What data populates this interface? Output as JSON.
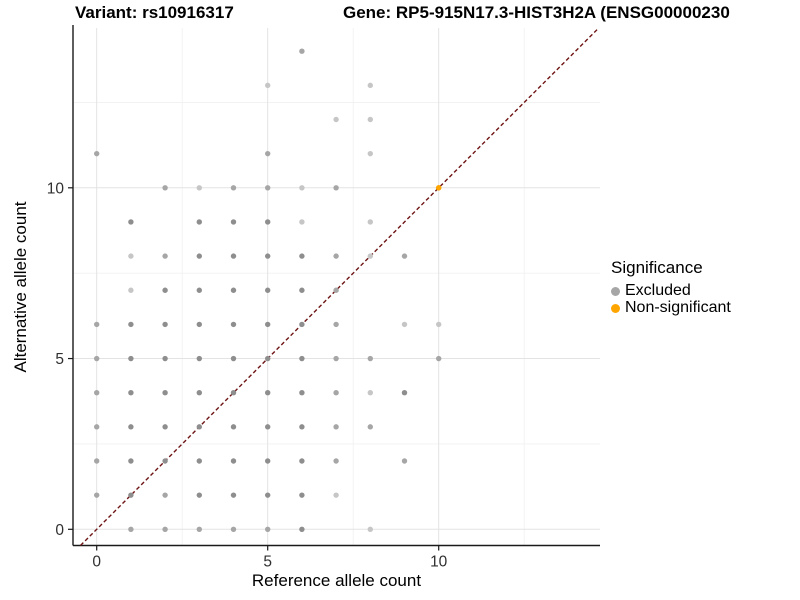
{
  "header": {
    "variant_label": "Variant: rs10916317",
    "gene_label": "Gene: RP5-915N17.3-HIST3H2A (ENSG00000230"
  },
  "chart_data": {
    "type": "scatter",
    "xlabel": "Reference allele count",
    "ylabel": "Alternative allele count",
    "x_ticks": [
      0,
      5,
      10
    ],
    "y_ticks": [
      0,
      5,
      10
    ],
    "x_minor_gridlines": [
      2.5,
      7.5,
      12.5
    ],
    "y_minor_gridlines": [
      2.5,
      7.5,
      12.5
    ],
    "xlim": [
      -0.7,
      14.7
    ],
    "ylim": [
      -0.47,
      14.68
    ],
    "grid": "major-and-minor",
    "identity_line": {
      "equation": "y = x",
      "style": "dashed",
      "color": "#6E1414"
    },
    "point_shade_colors": {
      "1": "#C6C6C6",
      "2": "#A6A6A6",
      "3": "#8E8E8E"
    },
    "series": [
      {
        "name": "Excluded",
        "color": "#A6A6A6",
        "points_xys": [
          [
            1,
            0,
            2
          ],
          [
            2,
            0,
            2
          ],
          [
            3,
            0,
            2
          ],
          [
            4,
            0,
            2
          ],
          [
            5,
            0,
            2
          ],
          [
            6,
            0,
            3
          ],
          [
            8,
            0,
            1
          ],
          [
            0,
            1,
            2
          ],
          [
            1,
            1,
            3
          ],
          [
            2,
            1,
            2
          ],
          [
            3,
            1,
            3
          ],
          [
            4,
            1,
            3
          ],
          [
            5,
            1,
            3
          ],
          [
            6,
            1,
            3
          ],
          [
            7,
            1,
            1
          ],
          [
            0,
            2,
            2
          ],
          [
            1,
            2,
            3
          ],
          [
            2,
            2,
            3
          ],
          [
            3,
            2,
            3
          ],
          [
            4,
            2,
            3
          ],
          [
            5,
            2,
            3
          ],
          [
            6,
            2,
            3
          ],
          [
            7,
            2,
            2
          ],
          [
            9,
            2,
            2
          ],
          [
            0,
            3,
            2
          ],
          [
            1,
            3,
            3
          ],
          [
            2,
            3,
            3
          ],
          [
            3,
            3,
            3
          ],
          [
            4,
            3,
            3
          ],
          [
            5,
            3,
            3
          ],
          [
            6,
            3,
            3
          ],
          [
            7,
            3,
            2
          ],
          [
            8,
            3,
            2
          ],
          [
            0,
            4,
            2
          ],
          [
            1,
            4,
            3
          ],
          [
            2,
            4,
            3
          ],
          [
            3,
            4,
            3
          ],
          [
            4,
            4,
            3
          ],
          [
            5,
            4,
            3
          ],
          [
            6,
            4,
            3
          ],
          [
            7,
            4,
            2
          ],
          [
            8,
            4,
            1
          ],
          [
            9,
            4,
            3
          ],
          [
            0,
            5,
            2
          ],
          [
            1,
            5,
            3
          ],
          [
            2,
            5,
            3
          ],
          [
            3,
            5,
            3
          ],
          [
            4,
            5,
            3
          ],
          [
            5,
            5,
            3
          ],
          [
            6,
            5,
            3
          ],
          [
            7,
            5,
            2
          ],
          [
            8,
            5,
            2
          ],
          [
            10,
            5,
            2
          ],
          [
            0,
            6,
            2
          ],
          [
            1,
            6,
            3
          ],
          [
            2,
            6,
            3
          ],
          [
            3,
            6,
            3
          ],
          [
            4,
            6,
            3
          ],
          [
            5,
            6,
            3
          ],
          [
            6,
            6,
            3
          ],
          [
            7,
            6,
            2
          ],
          [
            9,
            6,
            1
          ],
          [
            10,
            6,
            1
          ],
          [
            1,
            7,
            1
          ],
          [
            2,
            7,
            3
          ],
          [
            3,
            7,
            3
          ],
          [
            4,
            7,
            3
          ],
          [
            5,
            7,
            3
          ],
          [
            6,
            7,
            3
          ],
          [
            7,
            7,
            2
          ],
          [
            1,
            8,
            1
          ],
          [
            2,
            8,
            2
          ],
          [
            3,
            8,
            3
          ],
          [
            4,
            8,
            3
          ],
          [
            5,
            8,
            3
          ],
          [
            6,
            8,
            3
          ],
          [
            7,
            8,
            2
          ],
          [
            8,
            8,
            1
          ],
          [
            9,
            8,
            2
          ],
          [
            1,
            9,
            3
          ],
          [
            3,
            9,
            3
          ],
          [
            4,
            9,
            3
          ],
          [
            5,
            9,
            3
          ],
          [
            6,
            9,
            1
          ],
          [
            8,
            9,
            1
          ],
          [
            2,
            10,
            2
          ],
          [
            3,
            10,
            1
          ],
          [
            4,
            10,
            2
          ],
          [
            5,
            10,
            2
          ],
          [
            6,
            10,
            1
          ],
          [
            7,
            10,
            2
          ],
          [
            0,
            11,
            2
          ],
          [
            5,
            11,
            2
          ],
          [
            8,
            11,
            1
          ],
          [
            7,
            12,
            1
          ],
          [
            8,
            12,
            1
          ],
          [
            5,
            13,
            1
          ],
          [
            8,
            13,
            1
          ],
          [
            6,
            14,
            2
          ]
        ]
      },
      {
        "name": "Non-significant",
        "color": "#FFA500",
        "points_xys": [
          [
            10,
            10
          ]
        ]
      }
    ],
    "legend": {
      "title": "Significance",
      "position": "right",
      "entries": [
        {
          "label": "Excluded",
          "color": "#A6A6A6"
        },
        {
          "label": "Non-significant",
          "color": "#FFA500"
        }
      ]
    }
  },
  "style": {
    "axis_line_color": "#1A1A1A",
    "major_grid_color": "#E3E3E3",
    "minor_grid_color": "#F1F1F1",
    "tick_label_color": "#303030"
  }
}
